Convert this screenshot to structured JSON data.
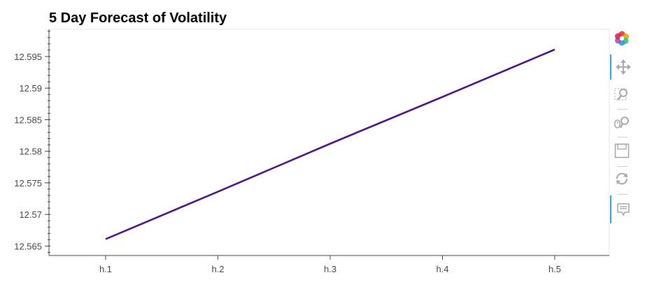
{
  "chart_data": {
    "type": "line",
    "title": "5 Day Forecast of Volatility",
    "xlabel": "",
    "ylabel": "",
    "categories": [
      "h.1",
      "h.2",
      "h.3",
      "h.4",
      "h.5"
    ],
    "series": [
      {
        "values": [
          12.5661,
          12.5736,
          12.5812,
          12.5886,
          12.5961
        ],
        "color": "#440f7e"
      }
    ],
    "ylim": [
      12.5635,
      12.5993
    ],
    "yticks": [
      12.565,
      12.57,
      12.575,
      12.58,
      12.585,
      12.59,
      12.595
    ],
    "ytick_labels": [
      "12.565",
      "12.57",
      "12.575",
      "12.58",
      "12.585",
      "12.59",
      "12.595"
    ],
    "grid": false,
    "legend": "none"
  },
  "toolbar": {
    "tools": [
      {
        "name": "bokeh-logo-icon",
        "active": false
      },
      {
        "name": "pan-tool-icon",
        "active": true
      },
      {
        "name": "box-zoom-tool-icon",
        "active": false
      },
      {
        "name": "wheel-zoom-tool-icon",
        "active": false
      },
      {
        "name": "save-tool-icon",
        "active": false
      },
      {
        "name": "reset-tool-icon",
        "active": false
      },
      {
        "name": "hover-tool-icon",
        "active": true
      }
    ]
  },
  "colors": {
    "line": "#440f7e",
    "axis": "#444444",
    "frame": "#e5e5e5",
    "toolbar_active": "#26aae1",
    "toolbar_icon": "#a9a9a9"
  }
}
